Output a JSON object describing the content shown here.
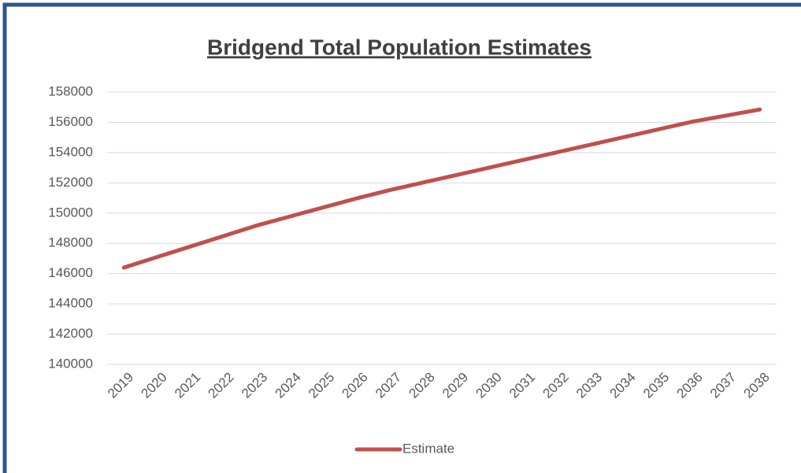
{
  "chart_data": {
    "type": "line",
    "title": "Bridgend Total Population Estimates",
    "categories": [
      "2019",
      "2020",
      "2021",
      "2022",
      "2023",
      "2024",
      "2025",
      "2026",
      "2027",
      "2028",
      "2029",
      "2030",
      "2031",
      "2032",
      "2033",
      "2034",
      "2035",
      "2036",
      "2037",
      "2038"
    ],
    "series": [
      {
        "name": "Estimate",
        "color": "#c0504d",
        "values": [
          146400,
          147100,
          147800,
          148500,
          149200,
          149800,
          150400,
          151000,
          151550,
          152050,
          152550,
          153050,
          153550,
          154050,
          154550,
          155050,
          155550,
          156050,
          156450,
          156850
        ]
      }
    ],
    "ylim": [
      140000,
      158000
    ],
    "yticks": [
      140000,
      142000,
      144000,
      146000,
      148000,
      150000,
      152000,
      154000,
      156000,
      158000
    ],
    "grid": true,
    "legend": "bottom"
  }
}
